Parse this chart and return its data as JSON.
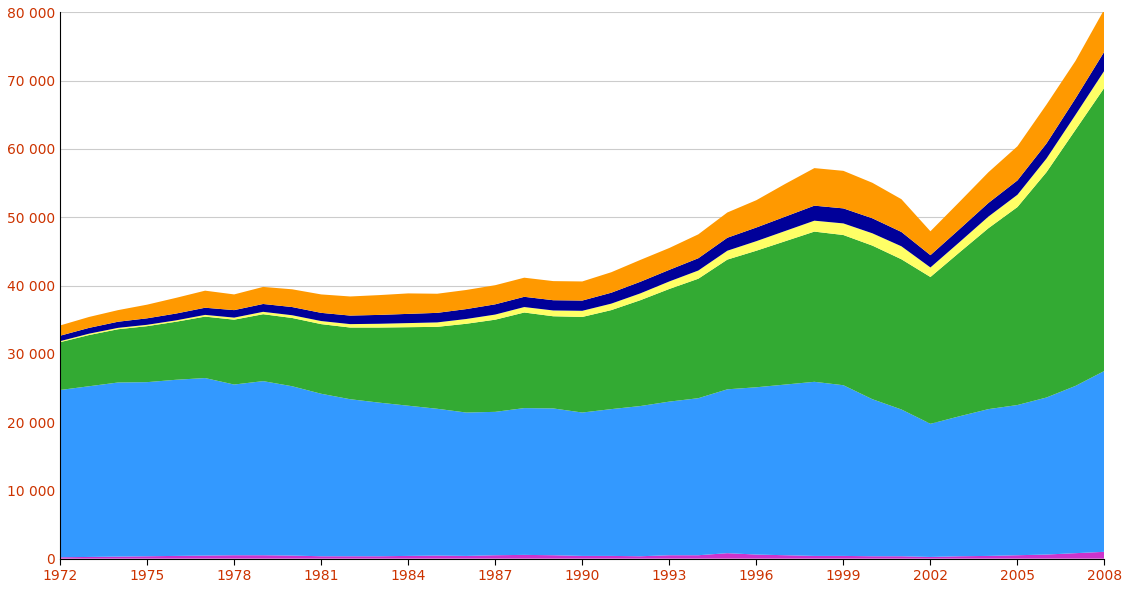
{
  "years": [
    1972,
    1973,
    1974,
    1975,
    1976,
    1977,
    1978,
    1979,
    1980,
    1981,
    1982,
    1983,
    1984,
    1985,
    1986,
    1987,
    1988,
    1989,
    1990,
    1991,
    1992,
    1993,
    1994,
    1995,
    1996,
    1997,
    1998,
    1999,
    2000,
    2001,
    2002,
    2003,
    2004,
    2005,
    2006,
    2007,
    2008
  ],
  "purple": [
    200,
    250,
    300,
    350,
    400,
    450,
    500,
    500,
    450,
    350,
    350,
    350,
    400,
    450,
    400,
    500,
    550,
    500,
    400,
    400,
    350,
    500,
    500,
    800,
    600,
    500,
    400,
    400,
    350,
    350,
    250,
    350,
    400,
    500,
    600,
    800,
    1000
  ],
  "blue": [
    24500,
    25000,
    25500,
    25500,
    25800,
    26000,
    25000,
    25500,
    24800,
    23800,
    23000,
    22500,
    22000,
    21500,
    21000,
    21000,
    21500,
    21500,
    21000,
    21500,
    22000,
    22500,
    23000,
    24000,
    24500,
    25000,
    25500,
    25000,
    23000,
    21500,
    19500,
    20500,
    21500,
    22000,
    23000,
    24500,
    26500
  ],
  "green": [
    7000,
    7500,
    7800,
    8200,
    8500,
    9000,
    9500,
    9800,
    10000,
    10200,
    10500,
    11000,
    11500,
    12000,
    13000,
    13500,
    14000,
    13500,
    14000,
    14500,
    15500,
    16500,
    17500,
    19000,
    20000,
    21000,
    22000,
    22000,
    22500,
    22000,
    21500,
    24000,
    26500,
    29000,
    33000,
    37500,
    41500
  ],
  "yellow": [
    150,
    200,
    200,
    200,
    200,
    250,
    300,
    350,
    400,
    450,
    500,
    550,
    600,
    650,
    700,
    750,
    800,
    850,
    900,
    950,
    1000,
    1100,
    1200,
    1300,
    1400,
    1500,
    1600,
    1700,
    1800,
    1900,
    1400,
    1500,
    1700,
    1800,
    2000,
    2200,
    2500
  ],
  "navy": [
    800,
    850,
    900,
    950,
    1000,
    1050,
    1100,
    1150,
    1200,
    1200,
    1250,
    1300,
    1350,
    1400,
    1450,
    1500,
    1500,
    1500,
    1500,
    1600,
    1700,
    1700,
    1800,
    1900,
    2000,
    2100,
    2200,
    2200,
    2200,
    2100,
    1800,
    1900,
    2000,
    2100,
    2200,
    2400,
    2800
  ],
  "orange": [
    1500,
    1600,
    1700,
    2000,
    2300,
    2500,
    2300,
    2500,
    2600,
    2700,
    2800,
    2900,
    3000,
    2800,
    2800,
    2800,
    2800,
    2800,
    2800,
    3000,
    3200,
    3200,
    3500,
    3700,
    4000,
    4800,
    5500,
    5500,
    5200,
    4800,
    3500,
    4000,
    4500,
    5000,
    5700,
    5500,
    6200
  ],
  "colors": {
    "purple": "#CC33CC",
    "blue": "#3399FF",
    "green": "#33AA33",
    "yellow": "#FFFF66",
    "navy": "#000099",
    "orange": "#FF9900"
  },
  "ylim": [
    0,
    80000
  ],
  "yticks": [
    0,
    10000,
    20000,
    30000,
    40000,
    50000,
    60000,
    70000,
    80000
  ],
  "ytick_labels": [
    "0",
    "10 000",
    "20 000",
    "30 000",
    "40 000",
    "50 000",
    "60 000",
    "70 000",
    "80 000"
  ],
  "xticks": [
    1972,
    1975,
    1978,
    1981,
    1984,
    1987,
    1990,
    1993,
    1996,
    1999,
    2002,
    2005,
    2008
  ],
  "background_color": "#FFFFFF",
  "grid_color": "#CCCCCC"
}
